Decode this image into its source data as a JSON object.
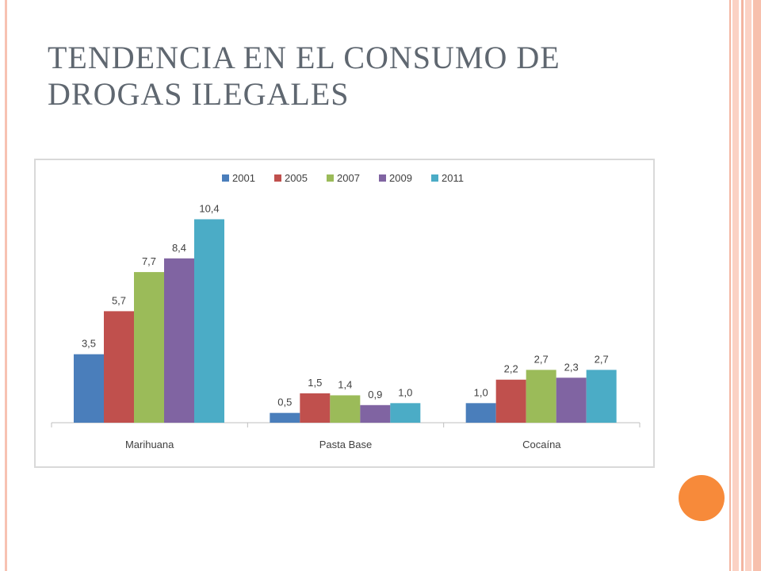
{
  "slide": {
    "title": "TENDENCIA EN EL CONSUMO DE DROGAS ILEGALES"
  },
  "colors": {
    "title": "#5f6770",
    "accent_circle": "#f78a3a",
    "left_rule": "#f7c2b2"
  },
  "chart_data": {
    "type": "bar",
    "title": "",
    "xlabel": "",
    "ylabel": "",
    "categories": [
      "Marihuana",
      "Pasta Base",
      "Cocaína"
    ],
    "series": [
      {
        "name": "2001",
        "color": "#4a7ebb",
        "values": [
          3.5,
          0.5,
          1.0
        ],
        "labels": [
          "3,5",
          "0,5",
          "1,0"
        ]
      },
      {
        "name": "2005",
        "color": "#c0504d",
        "values": [
          5.7,
          1.5,
          2.2
        ],
        "labels": [
          "5,7",
          "1,5",
          "2,2"
        ]
      },
      {
        "name": "2007",
        "color": "#9bbb59",
        "values": [
          7.7,
          1.4,
          2.7
        ],
        "labels": [
          "7,7",
          "1,4",
          "2,7"
        ]
      },
      {
        "name": "2009",
        "color": "#8064a2",
        "values": [
          8.4,
          0.9,
          2.3
        ],
        "labels": [
          "8,4",
          "0,9",
          "2,3"
        ]
      },
      {
        "name": "2011",
        "color": "#4bacc6",
        "values": [
          10.4,
          1.0,
          2.7
        ],
        "labels": [
          "10,4",
          "1,0",
          "2,7"
        ]
      }
    ],
    "ylim": [
      0,
      12
    ],
    "grid": false,
    "legend": "top-center"
  }
}
